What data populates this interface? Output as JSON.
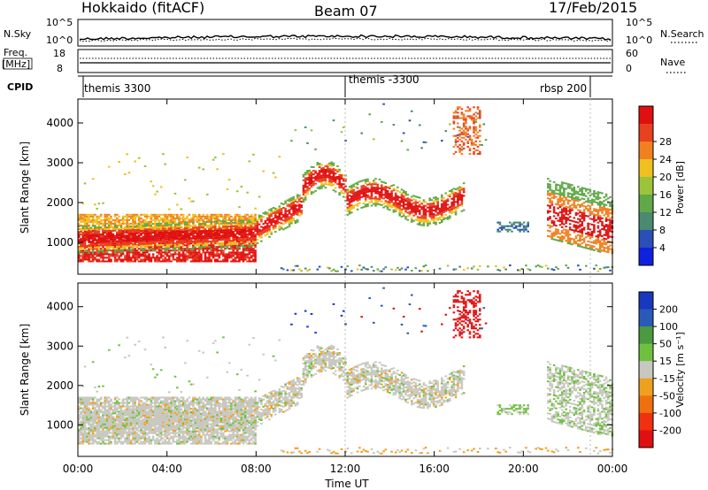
{
  "header": {
    "left_title": "Hokkaido (fitACF)",
    "center_title": "Beam 07",
    "right_title": "17/Feb/2015"
  },
  "strips": {
    "nsky": {
      "label": "N.Sky",
      "ticks": [
        "10^5",
        "10^0"
      ],
      "right_ticks": [
        "10^5",
        "10^0"
      ],
      "right_label": "N.Search"
    },
    "freq": {
      "label": "Freq.",
      "unit": "[MHz]",
      "ticks": [
        "18",
        "8"
      ],
      "right_ticks": [
        "60",
        "0"
      ],
      "right_label": "Nave"
    },
    "cpid": {
      "label": "CPID",
      "segments": [
        {
          "text": "themis 3300",
          "start_hour": 0
        },
        {
          "text": "themis -3300",
          "start_hour": 12
        },
        {
          "text": "rbsp 200",
          "start_hour": 23
        }
      ]
    }
  },
  "chart_data": [
    {
      "type": "heatmap",
      "title": "",
      "quantity": "Power",
      "ylabel": "Slant Range [km]",
      "colorbar_label": "Power [dB]",
      "ylim": [
        200,
        4600
      ],
      "xlim": [
        0,
        24
      ],
      "yticks": [
        1000,
        2000,
        3000,
        4000
      ],
      "colorbar_ticks": [
        "4",
        "8",
        "12",
        "16",
        "20",
        "24",
        "28"
      ],
      "colorbar_colors": [
        "#1020e0",
        "#2a4fb8",
        "#4a8a70",
        "#60a848",
        "#9cc43a",
        "#f0c020",
        "#f08020",
        "#e84020",
        "#e01010"
      ]
    },
    {
      "type": "heatmap",
      "title": "",
      "quantity": "Velocity",
      "ylabel": "Slant Range [km]",
      "colorbar_label": "Velocity [m s⁻¹]",
      "ylim": [
        200,
        4600
      ],
      "xlim": [
        0,
        24
      ],
      "yticks": [
        1000,
        2000,
        3000,
        4000
      ],
      "colorbar_ticks": [
        "200",
        "100",
        "50",
        "15",
        "-15",
        "-50",
        "-100",
        "-200"
      ],
      "colorbar_colors": [
        "#1838c0",
        "#2a5ab8",
        "#4a9a40",
        "#70c040",
        "#c8c8c0",
        "#f0a020",
        "#f07010",
        "#f03010",
        "#e01010"
      ]
    }
  ],
  "x_axis": {
    "ticks": [
      "00:00",
      "04:00",
      "08:00",
      "12:00",
      "16:00",
      "20:00",
      "00:00"
    ],
    "label": "Time UT"
  }
}
